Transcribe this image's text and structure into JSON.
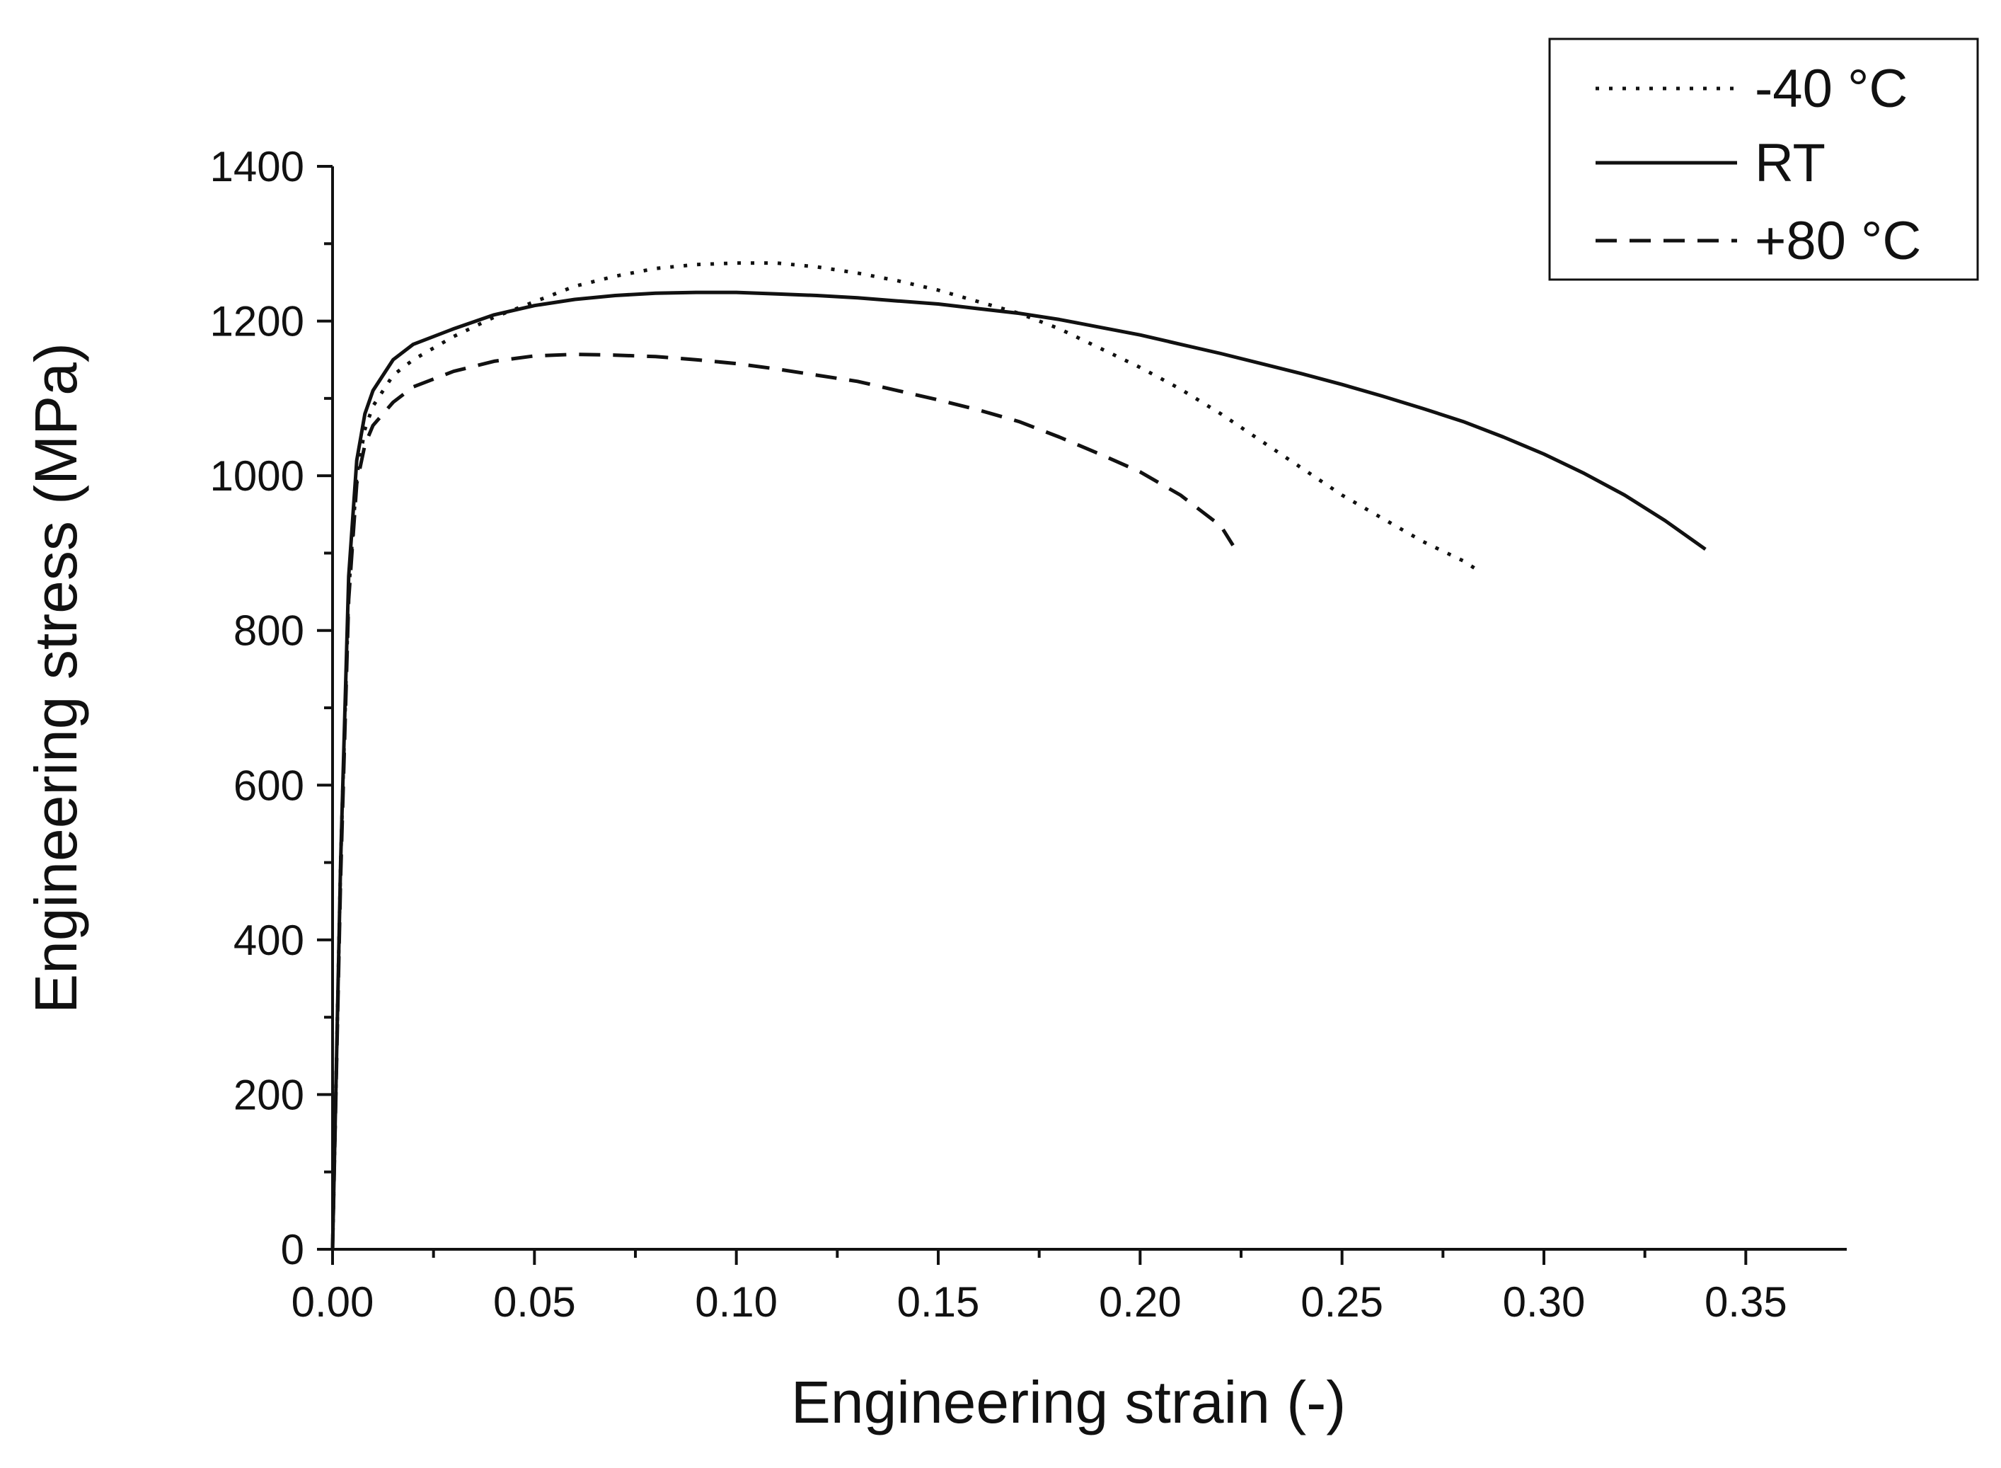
{
  "chart_data": {
    "type": "line",
    "title": "",
    "xlabel": "Engineering strain (-)",
    "ylabel": "Engineering stress (MPa)",
    "xlim": [
      0,
      0.375
    ],
    "ylim": [
      0,
      1400
    ],
    "x_ticks": [
      0.0,
      0.05,
      0.1,
      0.15,
      0.2,
      0.25,
      0.3,
      0.35
    ],
    "x_tick_labels": [
      "0.00",
      "0.05",
      "0.10",
      "0.15",
      "0.20",
      "0.25",
      "0.30",
      "0.35"
    ],
    "y_ticks": [
      0,
      200,
      400,
      600,
      800,
      1000,
      1200,
      1400
    ],
    "y_tick_labels": [
      "0",
      "200",
      "400",
      "600",
      "800",
      "1000",
      "1200",
      "1400"
    ],
    "grid": false,
    "legend_position": "top-right",
    "series": [
      {
        "name": "-40 °C",
        "style": "dotted",
        "color": "#111111",
        "x": [
          0,
          0.002,
          0.004,
          0.006,
          0.008,
          0.01,
          0.015,
          0.02,
          0.03,
          0.04,
          0.05,
          0.06,
          0.07,
          0.08,
          0.09,
          0.1,
          0.11,
          0.12,
          0.13,
          0.14,
          0.15,
          0.16,
          0.17,
          0.18,
          0.19,
          0.2,
          0.21,
          0.22,
          0.23,
          0.24,
          0.25,
          0.26,
          0.27,
          0.28,
          0.283
        ],
        "y": [
          0,
          500,
          850,
          1000,
          1060,
          1090,
          1130,
          1150,
          1180,
          1205,
          1225,
          1245,
          1258,
          1268,
          1273,
          1275,
          1275,
          1270,
          1262,
          1252,
          1240,
          1225,
          1210,
          1190,
          1165,
          1140,
          1112,
          1080,
          1045,
          1010,
          975,
          945,
          915,
          890,
          880
        ]
      },
      {
        "name": "RT",
        "style": "solid",
        "color": "#111111",
        "x": [
          0,
          0.002,
          0.004,
          0.006,
          0.008,
          0.01,
          0.015,
          0.02,
          0.03,
          0.04,
          0.05,
          0.06,
          0.07,
          0.08,
          0.09,
          0.1,
          0.11,
          0.12,
          0.13,
          0.14,
          0.15,
          0.16,
          0.17,
          0.18,
          0.19,
          0.2,
          0.21,
          0.22,
          0.23,
          0.24,
          0.25,
          0.26,
          0.27,
          0.28,
          0.29,
          0.3,
          0.31,
          0.32,
          0.33,
          0.34
        ],
        "y": [
          0,
          500,
          870,
          1020,
          1080,
          1110,
          1150,
          1170,
          1190,
          1208,
          1220,
          1228,
          1233,
          1236,
          1237,
          1237,
          1235,
          1233,
          1230,
          1226,
          1222,
          1216,
          1210,
          1202,
          1192,
          1182,
          1170,
          1158,
          1145,
          1132,
          1118,
          1103,
          1087,
          1070,
          1050,
          1028,
          1003,
          975,
          942,
          905
        ]
      },
      {
        "name": "+80 °C",
        "style": "dashed",
        "color": "#111111",
        "x": [
          0,
          0.002,
          0.004,
          0.006,
          0.008,
          0.01,
          0.015,
          0.02,
          0.03,
          0.04,
          0.05,
          0.06,
          0.07,
          0.08,
          0.09,
          0.1,
          0.11,
          0.12,
          0.13,
          0.14,
          0.15,
          0.16,
          0.17,
          0.18,
          0.19,
          0.2,
          0.21,
          0.215,
          0.22,
          0.223
        ],
        "y": [
          0,
          480,
          840,
          990,
          1040,
          1065,
          1095,
          1115,
          1135,
          1148,
          1155,
          1157,
          1156,
          1154,
          1150,
          1145,
          1138,
          1130,
          1122,
          1110,
          1098,
          1085,
          1070,
          1050,
          1028,
          1005,
          975,
          955,
          935,
          910
        ]
      }
    ]
  }
}
